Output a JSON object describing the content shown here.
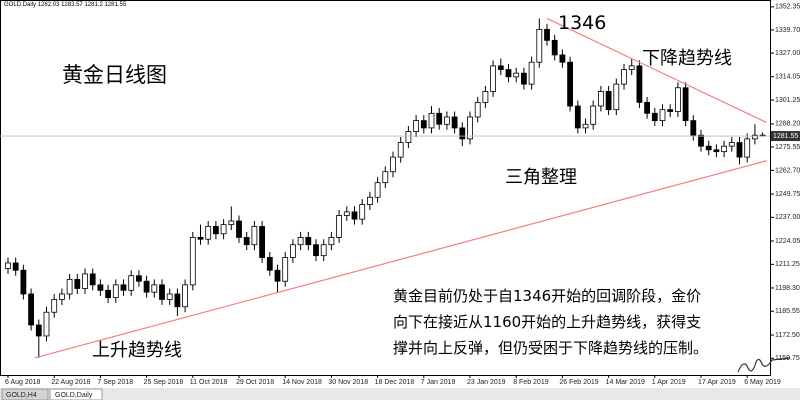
{
  "header": {
    "symbol": "GOLD,Daily"
  },
  "tabs": [
    "GOLD,H4",
    "GOLD,Daily"
  ],
  "annotations": {
    "title": "黄金日线图",
    "peak": "1346",
    "down_trend": "下降趋势线",
    "triangle": "三角整理",
    "up_trend": "上升趋势线",
    "note": [
      "黄金目前仍处于自1346开始的回调阶段，金价",
      "向下在接近从1160开始的上升趋势线，获得支",
      "撑并向上反弹，但仍受困于下降趋势线的压制。"
    ]
  },
  "chart_data": {
    "type": "candlestick",
    "categories": [
      "6 Aug 2018",
      null,
      null,
      null,
      null,
      null,
      "22 Aug 2018",
      null,
      null,
      null,
      null,
      null,
      "7 Sep 2018",
      null,
      null,
      null,
      null,
      null,
      "25 Sep 2018",
      null,
      null,
      null,
      null,
      null,
      "11 Oct 2018",
      null,
      null,
      null,
      null,
      null,
      "29 Oct 2018",
      null,
      null,
      null,
      null,
      null,
      "14 Nov 2018",
      null,
      null,
      null,
      null,
      null,
      "30 Nov 2018",
      null,
      null,
      null,
      null,
      null,
      "18 Dec 2018",
      null,
      null,
      null,
      null,
      null,
      "7 Jan 2019",
      null,
      null,
      null,
      null,
      null,
      "23 Jan 2019",
      null,
      null,
      null,
      null,
      null,
      "8 Feb 2019",
      null,
      null,
      null,
      null,
      null,
      "26 Feb 2019",
      null,
      null,
      null,
      null,
      null,
      "14 Mar 2019",
      null,
      null,
      null,
      null,
      null,
      "1 Apr 2019",
      null,
      null,
      null,
      null,
      null,
      "17 Apr 2019",
      null,
      null,
      null,
      null,
      null,
      "6 May 2019",
      null,
      null
    ],
    "open": [
      1209,
      1212,
      1208,
      1195,
      1178,
      1172,
      1185,
      1192,
      1195,
      1203,
      1198,
      1206,
      1200,
      1197,
      1193,
      1200,
      1197,
      1205,
      1202,
      1196,
      1200,
      1192,
      1195,
      1188,
      1200,
      1226,
      1225,
      1232,
      1228,
      1233,
      1235,
      1226,
      1222,
      1232,
      1215,
      1208,
      1202,
      1215,
      1222,
      1226,
      1222,
      1216,
      1222,
      1226,
      1238,
      1240,
      1236,
      1244,
      1248,
      1256,
      1262,
      1270,
      1278,
      1284,
      1290,
      1286,
      1294,
      1288,
      1292,
      1286,
      1280,
      1292,
      1300,
      1306,
      1320,
      1318,
      1314,
      1316,
      1310,
      1322,
      1340,
      1334,
      1326,
      1322,
      1298,
      1286,
      1288,
      1298,
      1306,
      1296,
      1310,
      1318,
      1320,
      1300,
      1294,
      1290,
      1296,
      1295,
      1308,
      1290,
      1282,
      1276,
      1274,
      1273,
      1276,
      1278,
      1270,
      1280,
      1282.03
    ],
    "high": [
      1215,
      1215,
      1211,
      1198,
      1181,
      1188,
      1195,
      1198,
      1206,
      1206,
      1209,
      1209,
      1203,
      1200,
      1203,
      1203,
      1208,
      1208,
      1205,
      1203,
      1203,
      1198,
      1198,
      1203,
      1229,
      1233,
      1235,
      1235,
      1236,
      1243,
      1238,
      1229,
      1235,
      1235,
      1218,
      1211,
      1218,
      1225,
      1229,
      1229,
      1225,
      1225,
      1229,
      1241,
      1243,
      1243,
      1247,
      1251,
      1259,
      1265,
      1273,
      1281,
      1287,
      1293,
      1293,
      1298,
      1297,
      1295,
      1295,
      1289,
      1295,
      1303,
      1309,
      1323,
      1324,
      1321,
      1319,
      1319,
      1325,
      1346,
      1343,
      1337,
      1329,
      1325,
      1301,
      1291,
      1301,
      1309,
      1309,
      1313,
      1321,
      1324,
      1323,
      1303,
      1297,
      1299,
      1299,
      1311,
      1311,
      1293,
      1285,
      1279,
      1277,
      1279,
      1281,
      1281,
      1283,
      1288,
      1283.57
    ],
    "low": [
      1206,
      1205,
      1192,
      1175,
      1160,
      1169,
      1182,
      1189,
      1192,
      1195,
      1195,
      1197,
      1194,
      1190,
      1190,
      1194,
      1194,
      1199,
      1193,
      1193,
      1189,
      1189,
      1183,
      1185,
      1197,
      1222,
      1222,
      1225,
      1225,
      1230,
      1223,
      1219,
      1219,
      1212,
      1205,
      1196,
      1199,
      1212,
      1219,
      1219,
      1213,
      1213,
      1219,
      1223,
      1235,
      1233,
      1233,
      1241,
      1245,
      1253,
      1259,
      1267,
      1275,
      1281,
      1283,
      1283,
      1285,
      1285,
      1283,
      1276,
      1277,
      1289,
      1297,
      1303,
      1315,
      1311,
      1311,
      1307,
      1307,
      1319,
      1331,
      1323,
      1319,
      1295,
      1283,
      1283,
      1285,
      1295,
      1293,
      1293,
      1307,
      1315,
      1297,
      1291,
      1287,
      1287,
      1292,
      1292,
      1287,
      1279,
      1273,
      1271,
      1270,
      1270,
      1273,
      1266,
      1267,
      1277,
      1281.2
    ],
    "close": [
      1212,
      1208,
      1195,
      1178,
      1172,
      1185,
      1192,
      1195,
      1203,
      1198,
      1206,
      1200,
      1197,
      1193,
      1200,
      1197,
      1205,
      1202,
      1196,
      1200,
      1192,
      1195,
      1188,
      1200,
      1226,
      1225,
      1232,
      1228,
      1233,
      1235,
      1226,
      1222,
      1232,
      1215,
      1208,
      1202,
      1215,
      1222,
      1226,
      1222,
      1216,
      1222,
      1226,
      1238,
      1240,
      1236,
      1244,
      1248,
      1256,
      1262,
      1270,
      1278,
      1284,
      1290,
      1286,
      1294,
      1288,
      1292,
      1286,
      1280,
      1292,
      1300,
      1306,
      1320,
      1318,
      1314,
      1316,
      1310,
      1322,
      1340,
      1334,
      1326,
      1322,
      1298,
      1286,
      1288,
      1298,
      1306,
      1296,
      1310,
      1318,
      1320,
      1300,
      1294,
      1290,
      1296,
      1295,
      1308,
      1290,
      1282,
      1276,
      1274,
      1273,
      1276,
      1278,
      1270,
      1280,
      1282,
      1281.55
    ],
    "up_color": "#ffffff",
    "down_color": "#000000",
    "wick_color": "#000000",
    "trendlines": [
      {
        "x": [
          3.5,
          98.5
        ],
        "y": [
          1160,
          1268
        ],
        "color": "#f08080"
      },
      {
        "x": [
          70,
          98.5
        ],
        "y": [
          1346,
          1289
        ],
        "color": "#f08080"
      }
    ],
    "ylim": [
      1150.6,
      1356.1
    ],
    "yticks": [
      1352.35,
      {
        "value": 1339.7,
        "label": "1339.70"
      },
      {
        "value": 1327,
        "label": "1327.00"
      },
      1314.05,
      1301.25,
      {
        "value": 1288.2,
        "label": "1288.20"
      },
      1275.55,
      {
        "value": 1262.7,
        "label": "1262.70"
      },
      1249.75,
      {
        "value": 1237,
        "label": "1237.00"
      },
      1224.05,
      1211.25,
      {
        "value": 1198.3,
        "label": "1198.30"
      },
      1185.55,
      {
        "value": 1172.5,
        "label": "1172.50"
      },
      1159.75
    ]
  }
}
